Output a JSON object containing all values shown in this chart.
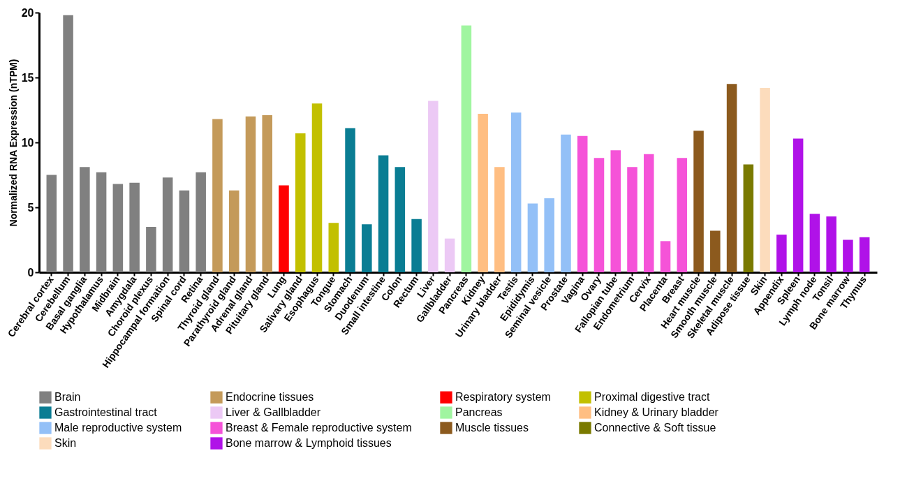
{
  "chart_data": {
    "type": "bar",
    "ylabel": "Normalized RNA Expression (nTPM)",
    "categories": [
      "Cerebral cortex",
      "Cerebellum",
      "Basal ganglia",
      "Hypothalamus",
      "Midbrain",
      "Amygdala",
      "Choroid plexus",
      "Hippocampal formation",
      "Spinal cord",
      "Retina",
      "Thyroid gland",
      "Parathyroid gland",
      "Adrenal gland",
      "Pituitary gland",
      "Lung",
      "Salivary gland",
      "Esophagus",
      "Tongue",
      "Stomach",
      "Duodenum",
      "Small intestine",
      "Colon",
      "Rectum",
      "Liver",
      "Gallbladder",
      "Pancreas",
      "Kidney",
      "Urinary bladder",
      "Testis",
      "Epididymis",
      "Seminal vesicle",
      "Prostate",
      "Vagina",
      "Ovary",
      "Fallopian tube",
      "Endometrium",
      "Cervix",
      "Placenta",
      "Breast",
      "Heart muscle",
      "Smooth muscle",
      "Skeletal muscle",
      "Adipose tissue",
      "Skin",
      "Appendix",
      "Spleen",
      "Lymph node",
      "Tonsil",
      "Bone marrow",
      "Thymus"
    ],
    "series": [
      {
        "name": "Brain",
        "color": "#808080",
        "values": [
          7.5,
          19.8,
          8.1,
          7.7,
          6.8,
          6.9,
          3.5,
          7.3,
          6.3,
          7.7,
          null,
          null,
          null,
          null,
          null,
          null,
          null,
          null,
          null,
          null,
          null,
          null,
          null,
          null,
          null,
          null,
          null,
          null,
          null,
          null,
          null,
          null,
          null,
          null,
          null,
          null,
          null,
          null,
          null,
          null,
          null,
          null,
          null,
          null,
          null,
          null,
          null,
          null,
          null,
          null
        ]
      },
      {
        "name": "Endocrine tissues",
        "color": "#c49a5a",
        "values": [
          null,
          null,
          null,
          null,
          null,
          null,
          null,
          null,
          null,
          null,
          11.8,
          6.3,
          12.0,
          12.1,
          null,
          null,
          null,
          null,
          null,
          null,
          null,
          null,
          null,
          null,
          null,
          null,
          null,
          null,
          null,
          null,
          null,
          null,
          null,
          null,
          null,
          null,
          null,
          null,
          null,
          null,
          null,
          null,
          null,
          null,
          null,
          null,
          null,
          null,
          null,
          null
        ]
      },
      {
        "name": "Respiratory system",
        "color": "#ff0000",
        "values": [
          null,
          null,
          null,
          null,
          null,
          null,
          null,
          null,
          null,
          null,
          null,
          null,
          null,
          null,
          6.7,
          null,
          null,
          null,
          null,
          null,
          null,
          null,
          null,
          null,
          null,
          null,
          null,
          null,
          null,
          null,
          null,
          null,
          null,
          null,
          null,
          null,
          null,
          null,
          null,
          null,
          null,
          null,
          null,
          null,
          null,
          null,
          null,
          null,
          null,
          null
        ]
      },
      {
        "name": "Proximal digestive tract",
        "color": "#c2c000",
        "values": [
          null,
          null,
          null,
          null,
          null,
          null,
          null,
          null,
          null,
          null,
          null,
          null,
          null,
          null,
          null,
          10.7,
          13.0,
          3.8,
          null,
          null,
          null,
          null,
          null,
          null,
          null,
          null,
          null,
          null,
          null,
          null,
          null,
          null,
          null,
          null,
          null,
          null,
          null,
          null,
          null,
          null,
          null,
          null,
          null,
          null,
          null,
          null,
          null,
          null,
          null,
          null
        ]
      },
      {
        "name": "Gastrointestinal tract",
        "color": "#0a7d93",
        "values": [
          null,
          null,
          null,
          null,
          null,
          null,
          null,
          null,
          null,
          null,
          null,
          null,
          null,
          null,
          null,
          null,
          null,
          null,
          11.1,
          3.7,
          9.0,
          8.1,
          4.1,
          null,
          null,
          null,
          null,
          null,
          null,
          null,
          null,
          null,
          null,
          null,
          null,
          null,
          null,
          null,
          null,
          null,
          null,
          null,
          null,
          null,
          null,
          null,
          null,
          null,
          null,
          null
        ]
      },
      {
        "name": "Liver & Gallbladder",
        "color": "#ecc9f5",
        "values": [
          null,
          null,
          null,
          null,
          null,
          null,
          null,
          null,
          null,
          null,
          null,
          null,
          null,
          null,
          null,
          null,
          null,
          null,
          null,
          null,
          null,
          null,
          null,
          13.2,
          2.6,
          null,
          null,
          null,
          null,
          null,
          null,
          null,
          null,
          null,
          null,
          null,
          null,
          null,
          null,
          null,
          null,
          null,
          null,
          null,
          null,
          null,
          null,
          null,
          null,
          null
        ]
      },
      {
        "name": "Pancreas",
        "color": "#a0f5a0",
        "values": [
          null,
          null,
          null,
          null,
          null,
          null,
          null,
          null,
          null,
          null,
          null,
          null,
          null,
          null,
          null,
          null,
          null,
          null,
          null,
          null,
          null,
          null,
          null,
          null,
          null,
          19.0,
          null,
          null,
          null,
          null,
          null,
          null,
          null,
          null,
          null,
          null,
          null,
          null,
          null,
          null,
          null,
          null,
          null,
          null,
          null,
          null,
          null,
          null,
          null,
          null
        ]
      },
      {
        "name": "Kidney & Urinary bladder",
        "color": "#ffbe82",
        "values": [
          null,
          null,
          null,
          null,
          null,
          null,
          null,
          null,
          null,
          null,
          null,
          null,
          null,
          null,
          null,
          null,
          null,
          null,
          null,
          null,
          null,
          null,
          null,
          null,
          null,
          null,
          12.2,
          8.1,
          null,
          null,
          null,
          null,
          null,
          null,
          null,
          null,
          null,
          null,
          null,
          null,
          null,
          null,
          null,
          null,
          null,
          null,
          null,
          null,
          null,
          null
        ]
      },
      {
        "name": "Male reproductive system",
        "color": "#93c0f7",
        "values": [
          null,
          null,
          null,
          null,
          null,
          null,
          null,
          null,
          null,
          null,
          null,
          null,
          null,
          null,
          null,
          null,
          null,
          null,
          null,
          null,
          null,
          null,
          null,
          null,
          null,
          null,
          null,
          null,
          12.3,
          5.3,
          5.7,
          10.6,
          null,
          null,
          null,
          null,
          null,
          null,
          null,
          null,
          null,
          null,
          null,
          null,
          null,
          null,
          null,
          null,
          null,
          null
        ]
      },
      {
        "name": "Breast & Female reproductive system",
        "color": "#f553d8",
        "values": [
          null,
          null,
          null,
          null,
          null,
          null,
          null,
          null,
          null,
          null,
          null,
          null,
          null,
          null,
          null,
          null,
          null,
          null,
          null,
          null,
          null,
          null,
          null,
          null,
          null,
          null,
          null,
          null,
          null,
          null,
          null,
          null,
          10.5,
          8.8,
          9.4,
          8.1,
          9.1,
          2.4,
          8.8,
          null,
          null,
          null,
          null,
          null,
          null,
          null,
          null,
          null,
          null,
          null
        ]
      },
      {
        "name": "Muscle tissues",
        "color": "#8c5a1e",
        "values": [
          null,
          null,
          null,
          null,
          null,
          null,
          null,
          null,
          null,
          null,
          null,
          null,
          null,
          null,
          null,
          null,
          null,
          null,
          null,
          null,
          null,
          null,
          null,
          null,
          null,
          null,
          null,
          null,
          null,
          null,
          null,
          null,
          null,
          null,
          null,
          null,
          null,
          null,
          null,
          10.9,
          3.2,
          14.5,
          null,
          null,
          null,
          null,
          null,
          null,
          null,
          null
        ]
      },
      {
        "name": "Connective & Soft tissue",
        "color": "#7a7a00",
        "values": [
          null,
          null,
          null,
          null,
          null,
          null,
          null,
          null,
          null,
          null,
          null,
          null,
          null,
          null,
          null,
          null,
          null,
          null,
          null,
          null,
          null,
          null,
          null,
          null,
          null,
          null,
          null,
          null,
          null,
          null,
          null,
          null,
          null,
          null,
          null,
          null,
          null,
          null,
          null,
          null,
          null,
          null,
          8.3,
          null,
          null,
          null,
          null,
          null,
          null,
          null
        ]
      },
      {
        "name": "Skin",
        "color": "#fcdcbc",
        "values": [
          null,
          null,
          null,
          null,
          null,
          null,
          null,
          null,
          null,
          null,
          null,
          null,
          null,
          null,
          null,
          null,
          null,
          null,
          null,
          null,
          null,
          null,
          null,
          null,
          null,
          null,
          null,
          null,
          null,
          null,
          null,
          null,
          null,
          null,
          null,
          null,
          null,
          null,
          null,
          null,
          null,
          null,
          null,
          14.2,
          null,
          null,
          null,
          null,
          null,
          null
        ]
      },
      {
        "name": "Bone marrow & Lymphoid tissues",
        "color": "#b012e8",
        "values": [
          null,
          null,
          null,
          null,
          null,
          null,
          null,
          null,
          null,
          null,
          null,
          null,
          null,
          null,
          null,
          null,
          null,
          null,
          null,
          null,
          null,
          null,
          null,
          null,
          null,
          null,
          null,
          null,
          null,
          null,
          null,
          null,
          null,
          null,
          null,
          null,
          null,
          null,
          null,
          null,
          null,
          null,
          null,
          null,
          2.9,
          10.3,
          4.5,
          4.3,
          2.5,
          2.7
        ]
      }
    ],
    "ylim": [
      0,
      20
    ],
    "yticks": [
      0,
      5,
      10,
      15,
      20
    ],
    "grid": false,
    "legend": "bottom"
  }
}
